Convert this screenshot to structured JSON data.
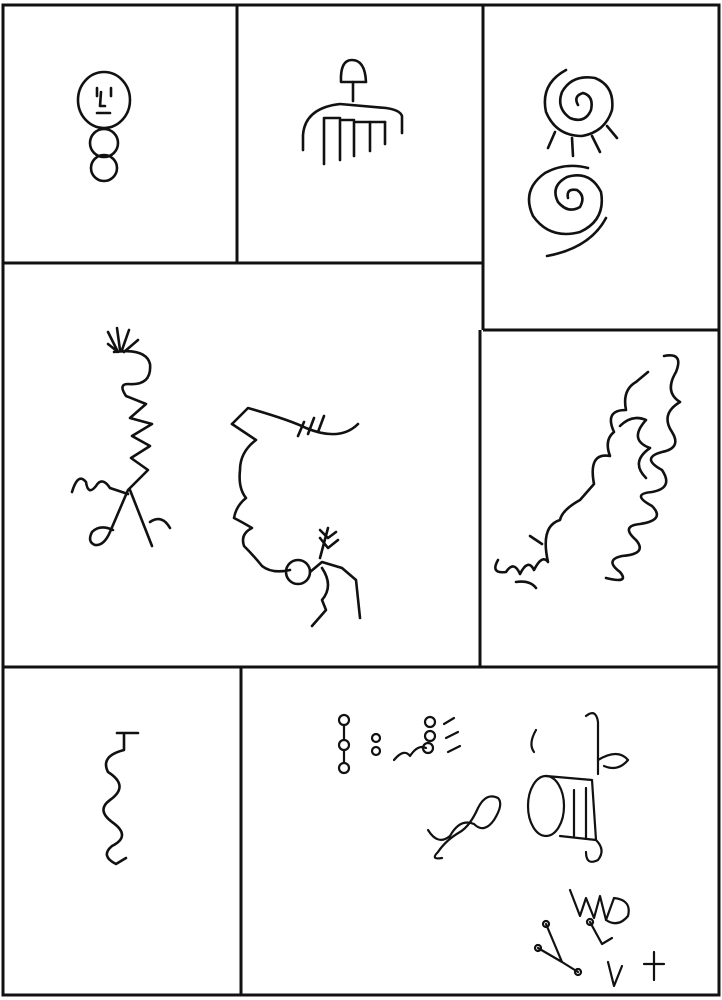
{
  "plate": {
    "panels": [
      {
        "id": "panel-top-left",
        "icon": "face-with-stacked-circles-figure"
      },
      {
        "id": "panel-top-middle",
        "icon": "comb-with-headed-stem-figure"
      },
      {
        "id": "panel-top-right",
        "icon": "spirals-sun-figure"
      },
      {
        "id": "panel-middle-left",
        "icon": "serpent-and-profile-figures"
      },
      {
        "id": "panel-middle-right",
        "icon": "wavy-serpents-figure"
      },
      {
        "id": "panel-bottom-left",
        "icon": "hooked-wavy-line-figure"
      },
      {
        "id": "panel-bottom-right",
        "icon": "mixed-small-glyphs-figure"
      }
    ],
    "ink_color": "#111111",
    "paper_color": "#ffffff"
  }
}
